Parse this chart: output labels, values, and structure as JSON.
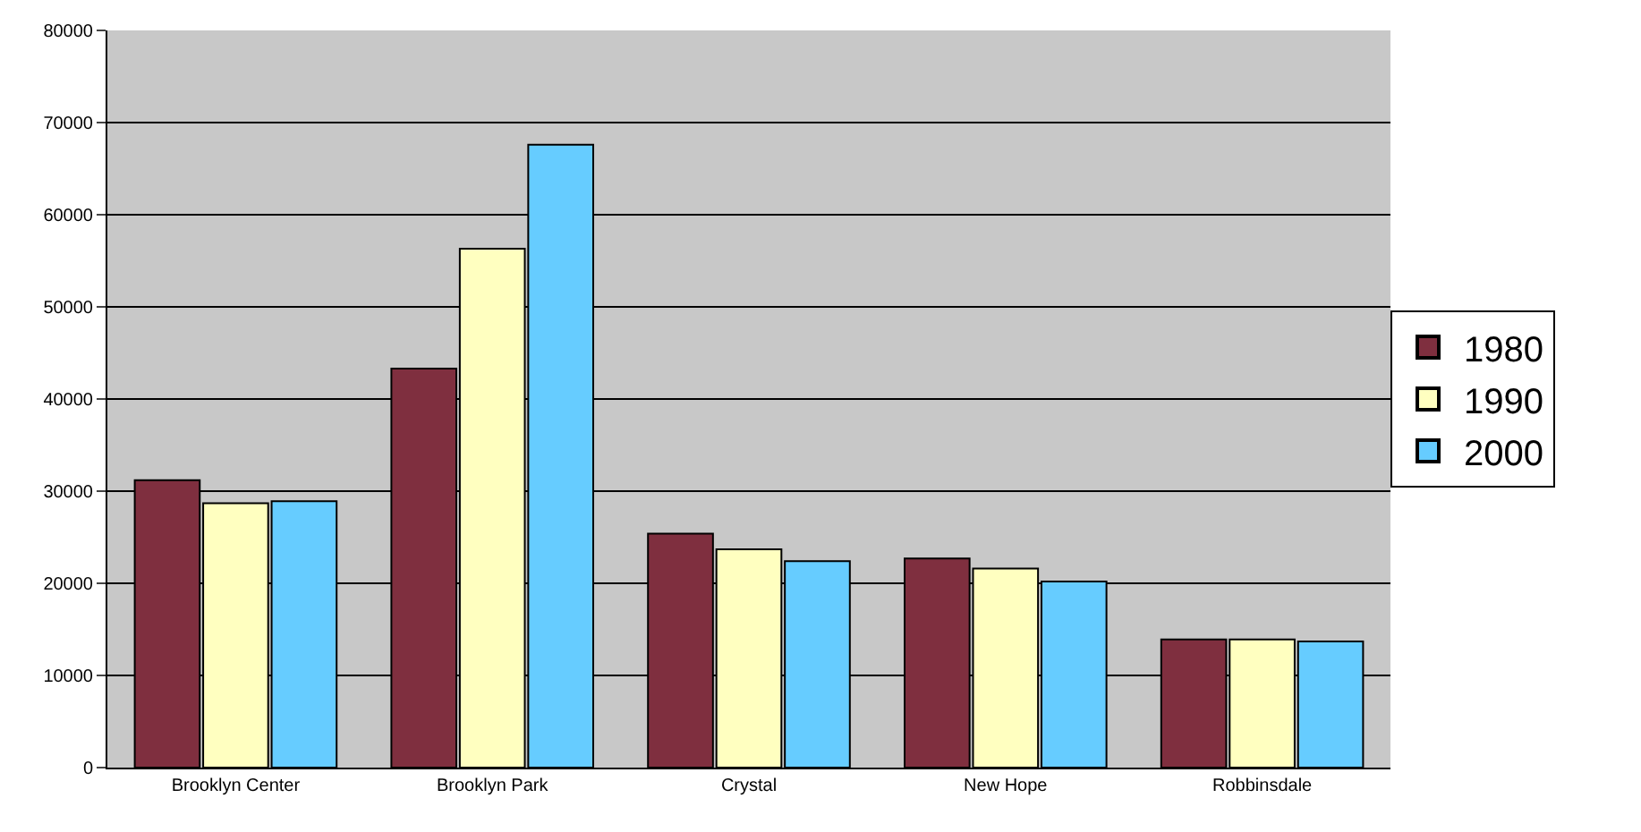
{
  "chart_data": {
    "type": "bar",
    "categories": [
      "Brooklyn Center",
      "Brooklyn Park",
      "Crystal",
      "New Hope",
      "Robbinsdale"
    ],
    "series": [
      {
        "name": "1980",
        "color": "#7f2f3f",
        "values": [
          31200,
          43300,
          25400,
          22700,
          13900
        ]
      },
      {
        "name": "1990",
        "color": "#ffffc0",
        "values": [
          28700,
          56300,
          23700,
          21600,
          13900
        ]
      },
      {
        "name": "2000",
        "color": "#66ccff",
        "values": [
          28900,
          67600,
          22400,
          20200,
          13700
        ]
      }
    ],
    "ylim": [
      0,
      80000
    ],
    "yticks": [
      0,
      10000,
      20000,
      30000,
      40000,
      50000,
      60000,
      70000,
      80000
    ],
    "grid": "y",
    "legend": "right"
  }
}
